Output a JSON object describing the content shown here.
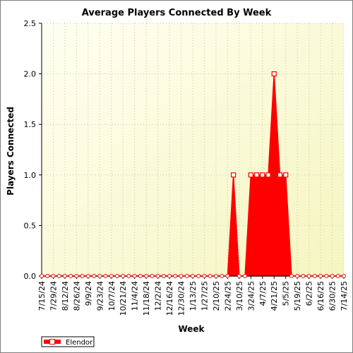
{
  "chart_data": {
    "type": "area",
    "title": "Average Players Connected By Week",
    "xlabel": "Week",
    "ylabel": "Players Connected",
    "ylim": [
      0,
      2.5
    ],
    "y_ticks": [
      "0.0",
      "0.5",
      "1.0",
      "1.5",
      "2.0",
      "2.5"
    ],
    "x_tick_labels": [
      "7/15/24",
      "7/29/24",
      "8/12/24",
      "8/26/24",
      "9/9/24",
      "9/23/24",
      "10/7/24",
      "10/21/24",
      "11/4/24",
      "11/18/24",
      "12/2/24",
      "12/16/24",
      "12/30/24",
      "1/13/25",
      "1/27/25",
      "2/10/25",
      "2/24/25",
      "3/10/25",
      "3/24/25",
      "4/7/25",
      "4/21/25",
      "5/5/25",
      "5/19/25",
      "6/2/25",
      "6/16/25",
      "6/30/25",
      "7/14/25"
    ],
    "grid": true,
    "legend_position": "bottom-left",
    "x": [
      "7/15/24",
      "7/22/24",
      "7/29/24",
      "8/5/24",
      "8/12/24",
      "8/19/24",
      "8/26/24",
      "9/2/24",
      "9/9/24",
      "9/16/24",
      "9/23/24",
      "9/30/24",
      "10/7/24",
      "10/14/24",
      "10/21/24",
      "10/28/24",
      "11/4/24",
      "11/11/24",
      "11/18/24",
      "11/25/24",
      "12/2/24",
      "12/9/24",
      "12/16/24",
      "12/23/24",
      "12/30/24",
      "1/6/25",
      "1/13/25",
      "1/20/25",
      "1/27/25",
      "2/3/25",
      "2/10/25",
      "2/17/25",
      "2/24/25",
      "3/3/25",
      "3/10/25",
      "3/17/25",
      "3/24/25",
      "3/31/25",
      "4/7/25",
      "4/14/25",
      "4/21/25",
      "4/28/25",
      "5/5/25",
      "5/12/25",
      "5/19/25",
      "5/26/25",
      "6/2/25",
      "6/9/25",
      "6/16/25",
      "6/23/25",
      "6/30/25",
      "7/7/25",
      "7/14/25"
    ],
    "series": [
      {
        "name": "Elendor",
        "color": "#ff0000",
        "marker_fill": "#ffffff",
        "values": [
          0,
          0,
          0,
          0,
          0,
          0,
          0,
          0,
          0,
          0,
          0,
          0,
          0,
          0,
          0,
          0,
          0,
          0,
          0,
          0,
          0,
          0,
          0,
          0,
          0,
          0,
          0,
          0,
          0,
          0,
          0,
          0,
          0,
          1,
          0,
          0,
          1,
          1,
          1,
          1,
          2,
          1,
          1,
          0,
          0,
          0,
          0,
          0,
          0,
          0,
          0,
          0,
          0
        ]
      }
    ]
  },
  "colors": {
    "plot_gradient_start": "#fffff2",
    "plot_gradient_end": "#f5f5c0",
    "grid": "#c8c8a0",
    "axis": "#000000"
  }
}
